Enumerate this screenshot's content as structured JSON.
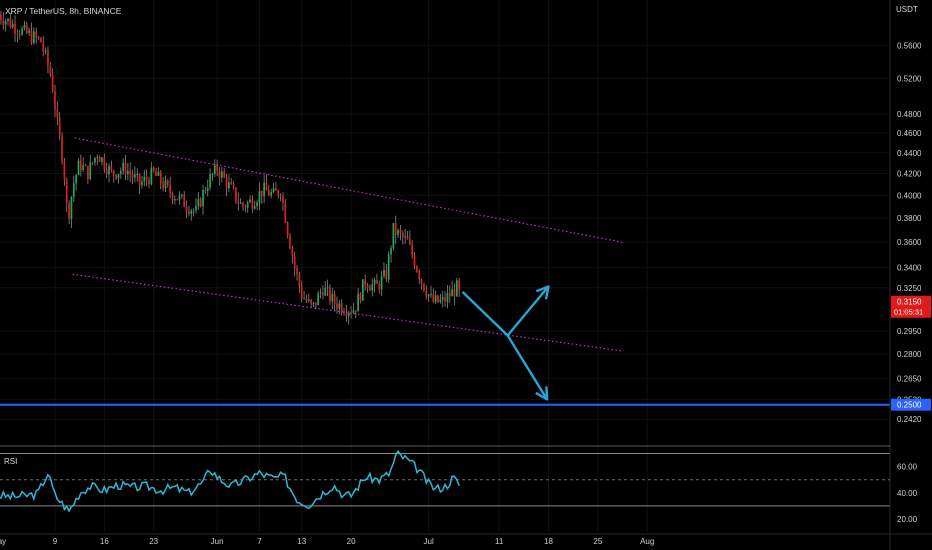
{
  "chart_data": [
    {
      "type": "candlestick",
      "title": "XRP / TetherUS, 8h, BINANCE",
      "currency": "USDT",
      "yscale": "log",
      "ylim": [
        0.232,
        0.62
      ],
      "x_ticks": [
        {
          "label": "May",
          "day": 1
        },
        {
          "label": "9",
          "day": 9
        },
        {
          "label": "16",
          "day": 16
        },
        {
          "label": "23",
          "day": 23
        },
        {
          "label": "Jun",
          "day": 32
        },
        {
          "label": "7",
          "day": 38
        },
        {
          "label": "13",
          "day": 44
        },
        {
          "label": "20",
          "day": 51
        },
        {
          "label": "Jul",
          "day": 62
        },
        {
          "label": "11",
          "day": 72
        },
        {
          "label": "18",
          "day": 79
        },
        {
          "label": "25",
          "day": 86
        },
        {
          "label": "Aug",
          "day": 93
        }
      ],
      "y_ticks": [
        "0.5600",
        "0.5200",
        "0.4800",
        "0.4600",
        "0.4400",
        "0.4200",
        "0.4000",
        "0.3800",
        "0.3600",
        "0.3400",
        "0.3250",
        "0.2950",
        "0.2800",
        "0.2650",
        "0.2530",
        "0.2420"
      ],
      "last_price": {
        "value": 0.315,
        "label": "0.3150",
        "countdown": "01:05:31"
      },
      "support_line": {
        "value": 0.25,
        "label": "0.2500",
        "color": "#2962ff"
      },
      "close_anchors": [
        [
          1.0,
          0.6
        ],
        [
          4.0,
          0.58
        ],
        [
          7.0,
          0.565
        ],
        [
          8.5,
          0.52
        ],
        [
          9.3,
          0.47
        ],
        [
          10.2,
          0.43
        ],
        [
          10.8,
          0.378
        ],
        [
          11.6,
          0.41
        ],
        [
          12.5,
          0.43
        ],
        [
          13.6,
          0.42
        ],
        [
          15.0,
          0.44
        ],
        [
          17.0,
          0.42
        ],
        [
          19.0,
          0.425
        ],
        [
          21.0,
          0.41
        ],
        [
          23.0,
          0.42
        ],
        [
          25.0,
          0.405
        ],
        [
          27.0,
          0.395
        ],
        [
          29.0,
          0.385
        ],
        [
          30.5,
          0.41
        ],
        [
          32.0,
          0.425
        ],
        [
          34.0,
          0.405
        ],
        [
          35.5,
          0.39
        ],
        [
          37.0,
          0.395
        ],
        [
          38.5,
          0.405
        ],
        [
          40.0,
          0.4
        ],
        [
          41.0,
          0.405
        ],
        [
          42.0,
          0.37
        ],
        [
          43.0,
          0.34
        ],
        [
          44.0,
          0.32
        ],
        [
          45.5,
          0.31
        ],
        [
          47.0,
          0.325
        ],
        [
          48.5,
          0.315
        ],
        [
          50.5,
          0.31
        ],
        [
          51.5,
          0.31
        ],
        [
          53.0,
          0.33
        ],
        [
          54.5,
          0.325
        ],
        [
          56.0,
          0.335
        ],
        [
          57.0,
          0.37
        ],
        [
          58.0,
          0.365
        ],
        [
          59.0,
          0.36
        ],
        [
          60.0,
          0.345
        ],
        [
          61.0,
          0.33
        ],
        [
          62.5,
          0.315
        ],
        [
          64.0,
          0.315
        ],
        [
          65.0,
          0.32
        ],
        [
          66.0,
          0.325
        ],
        [
          66.6,
          0.315
        ]
      ],
      "channel": {
        "color": "#cc33cc",
        "upper": [
          [
            11.8,
            0.455
          ],
          [
            89.5,
            0.36
          ]
        ],
        "lower": [
          [
            11.5,
            0.335
          ],
          [
            89.5,
            0.282
          ]
        ]
      },
      "projection": {
        "color": "#26a6d6",
        "paths": [
          [
            [
              66.8,
              0.322
            ],
            [
              73.2,
              0.292
            ],
            [
              79.0,
              0.326
            ]
          ],
          [
            [
              73.2,
              0.292
            ],
            [
              78.8,
              0.253
            ]
          ]
        ]
      },
      "colors": {
        "up": "#26a65b",
        "down": "#e02020",
        "wick": "#8a8a8a",
        "grid": "#111111"
      }
    },
    {
      "type": "line",
      "name": "RSI",
      "title": "RSI",
      "color": "#2fb8d8",
      "ylim": [
        10,
        75
      ],
      "y_ticks": [
        "60.00",
        "40.00",
        "20.00"
      ],
      "midline": 50,
      "bands": [
        70,
        30
      ],
      "anchors": [
        [
          1.0,
          38
        ],
        [
          3.0,
          37
        ],
        [
          5.0,
          38
        ],
        [
          6.5,
          39
        ],
        [
          8.0,
          55
        ],
        [
          9.0,
          38
        ],
        [
          10.0,
          32
        ],
        [
          11.0,
          26
        ],
        [
          12.5,
          40
        ],
        [
          14.0,
          45
        ],
        [
          16.0,
          42
        ],
        [
          18.0,
          46
        ],
        [
          20.0,
          44
        ],
        [
          22.0,
          45
        ],
        [
          24.0,
          42
        ],
        [
          26.0,
          44
        ],
        [
          28.0,
          40
        ],
        [
          30.0,
          48
        ],
        [
          31.0,
          58
        ],
        [
          32.5,
          50
        ],
        [
          34.0,
          45
        ],
        [
          36.0,
          50
        ],
        [
          38.0,
          55
        ],
        [
          40.0,
          51
        ],
        [
          41.5,
          53
        ],
        [
          42.5,
          42
        ],
        [
          43.5,
          34
        ],
        [
          45.0,
          31
        ],
        [
          47.0,
          40
        ],
        [
          48.5,
          46
        ],
        [
          50.0,
          38
        ],
        [
          51.0,
          38
        ],
        [
          53.0,
          52
        ],
        [
          55.0,
          50
        ],
        [
          56.5,
          55
        ],
        [
          57.5,
          70
        ],
        [
          59.0,
          65
        ],
        [
          60.5,
          58
        ],
        [
          62.0,
          47
        ],
        [
          63.0,
          43
        ],
        [
          64.5,
          45
        ],
        [
          65.5,
          52
        ],
        [
          66.6,
          44
        ]
      ]
    }
  ]
}
